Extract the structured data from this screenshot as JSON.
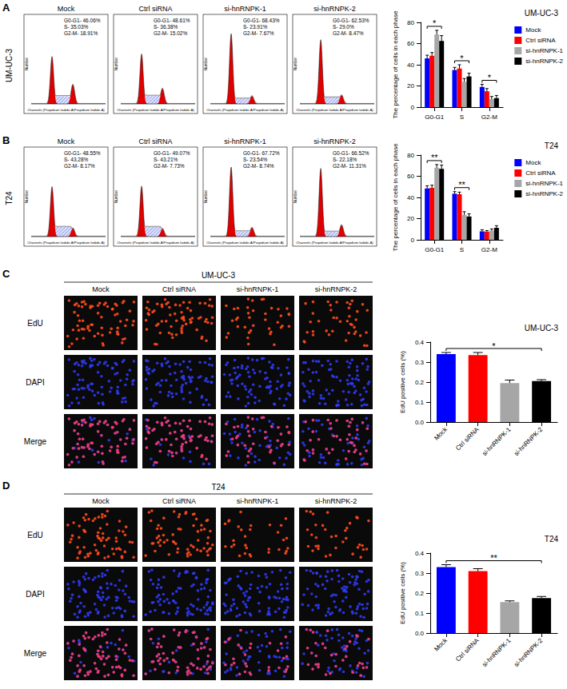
{
  "panel_labels": [
    "A",
    "B",
    "C",
    "D"
  ],
  "flow_cytometry": [
    {
      "cell_line": "UM-UC-3",
      "x_label": "Channels (Propidium Iodide-A/Propidium Iodide-A)",
      "y_label": "Number",
      "samples": [
        {
          "title": "Mock",
          "phases": [
            {
              "text": "G0-G1- 46.06%",
              "value": 46.06
            },
            {
              "text": "S- 35.03%",
              "value": 35.03
            },
            {
              "text": "G2-M- 18.91%",
              "value": 18.91
            }
          ]
        },
        {
          "title": "Ctrl siRNA",
          "phases": [
            {
              "text": "G0-G1- 48.61%",
              "value": 48.61
            },
            {
              "text": "S- 36.38%",
              "value": 36.38
            },
            {
              "text": "G2-M- 15.02%",
              "value": 15.02
            }
          ]
        },
        {
          "title": "si-hnRNPK-1",
          "phases": [
            {
              "text": "G0-G1- 68.43%",
              "value": 68.43
            },
            {
              "text": "S- 23.91%",
              "value": 23.91
            },
            {
              "text": "G2-M- 7.67%",
              "value": 7.67
            }
          ]
        },
        {
          "title": "si-hnRNPK-2",
          "phases": [
            {
              "text": "G0-G1- 62.53%",
              "value": 62.53
            },
            {
              "text": "S- 29.0%",
              "value": 29.0
            },
            {
              "text": "G2-M- 8.47%",
              "value": 8.47
            }
          ]
        }
      ]
    },
    {
      "cell_line": "T24",
      "x_label": "Channels (Propidium Iodide-A/Propidium Iodide-A)",
      "y_label": "Number",
      "samples": [
        {
          "title": "Mock",
          "phases": [
            {
              "text": "G0-G1- 48.55%",
              "value": 48.55
            },
            {
              "text": "S- 43.28%",
              "value": 43.28
            },
            {
              "text": "G2-M- 8.17%",
              "value": 8.17
            }
          ]
        },
        {
          "title": "Ctrl siRNA",
          "phases": [
            {
              "text": "G0-G1- 49.07%",
              "value": 49.07
            },
            {
              "text": "S- 43.21%",
              "value": 43.21
            },
            {
              "text": "G2-M- 7.73%",
              "value": 7.73
            }
          ]
        },
        {
          "title": "si-hnRNPK-1",
          "phases": [
            {
              "text": "G0-G1- 67.72%",
              "value": 67.72
            },
            {
              "text": "S- 23.54%",
              "value": 23.54
            },
            {
              "text": "G2-M- 8.74%",
              "value": 8.74
            }
          ]
        },
        {
          "title": "si-hnRNPK-2",
          "phases": [
            {
              "text": "G0-G1- 66.52%",
              "value": 66.52
            },
            {
              "text": "S- 22.18%",
              "value": 22.18
            },
            {
              "text": "G2-M- 11.31%",
              "value": 11.31
            }
          ]
        }
      ]
    }
  ],
  "edu_images": [
    {
      "cell_line": "UM-UC-3",
      "rows": [
        "EdU",
        "DAPI",
        "Merge"
      ],
      "columns": [
        "Mock",
        "Ctrl siRNA",
        "si-hnRNPK-1",
        "si-hnRNPK-2"
      ]
    },
    {
      "cell_line": "T24",
      "rows": [
        "EdU",
        "DAPI",
        "Merge"
      ],
      "columns": [
        "Mock",
        "Ctrl siRNA",
        "si-hnRNPK-1",
        "si-hnRNPK-2"
      ]
    }
  ],
  "chart_data": [
    {
      "type": "bar",
      "title": "UM-UC-3",
      "y_label": "The percentage of cells in each phase",
      "categories": [
        "G0-G1",
        "S",
        "G2-M"
      ],
      "series": [
        {
          "name": "Mock",
          "color": "#0000ff",
          "values": [
            46,
            35,
            19
          ],
          "errors": [
            3,
            2.5,
            2.5
          ]
        },
        {
          "name": "Ctrl siRNA",
          "color": "#ff0000",
          "values": [
            48.5,
            36.5,
            15
          ],
          "errors": [
            3,
            3.5,
            2.5
          ]
        },
        {
          "name": "si-hnRNPK-1",
          "color": "#a6a6a6",
          "values": [
            68.5,
            24,
            7.5
          ],
          "errors": [
            4,
            3,
            2.5
          ]
        },
        {
          "name": "si-hnRNPK-2",
          "color": "#000000",
          "values": [
            62.5,
            29,
            8.5
          ],
          "errors": [
            5,
            3,
            2.5
          ]
        }
      ],
      "ylim": [
        0,
        80
      ],
      "yticks": [
        0,
        20,
        40,
        60,
        80
      ],
      "grid": false,
      "legend": "right",
      "significance": [
        {
          "category": "G0-G1",
          "label": "*"
        },
        {
          "category": "S",
          "label": "*"
        },
        {
          "category": "G2-M",
          "label": "*"
        }
      ]
    },
    {
      "type": "bar",
      "title": "T24",
      "y_label": "The percentage of cells in each phase",
      "categories": [
        "G0-G1",
        "S",
        "G2-M"
      ],
      "series": [
        {
          "name": "Mock",
          "color": "#0000ff",
          "values": [
            48.5,
            43.5,
            8
          ],
          "errors": [
            2.5,
            2,
            1.5
          ]
        },
        {
          "name": "Ctrl siRNA",
          "color": "#ff0000",
          "values": [
            49,
            43,
            7.7
          ],
          "errors": [
            2.5,
            2,
            1
          ]
        },
        {
          "name": "si-hnRNPK-1",
          "color": "#a6a6a6",
          "values": [
            68,
            23.5,
            8.7
          ],
          "errors": [
            3,
            3,
            1.5
          ]
        },
        {
          "name": "si-hnRNPK-2",
          "color": "#000000",
          "values": [
            67,
            22,
            11.3
          ],
          "errors": [
            3.5,
            2.5,
            2
          ]
        }
      ],
      "ylim": [
        0,
        80
      ],
      "yticks": [
        0,
        20,
        40,
        60,
        80
      ],
      "grid": false,
      "legend": "right",
      "significance": [
        {
          "category": "G0-G1",
          "label": "**"
        },
        {
          "category": "S",
          "label": "**"
        }
      ]
    },
    {
      "type": "bar",
      "title": "UM-UC-3",
      "y_label": "EdU positive cells (%)",
      "categories": [
        "Mock",
        "Ctrl siRNA",
        "si-hnRNPK-1",
        "si-hnRNPK-2"
      ],
      "values": [
        0.34,
        0.335,
        0.195,
        0.205
      ],
      "errors": [
        0.008,
        0.013,
        0.015,
        0.007
      ],
      "colors": [
        "#0000ff",
        "#ff0000",
        "#a6a6a6",
        "#000000"
      ],
      "ylim": [
        0,
        0.4
      ],
      "yticks": [
        {
          "value": 0,
          "label": "0.0"
        },
        0.1,
        0.2,
        0.3,
        0.4
      ],
      "grid": false,
      "significance": [
        {
          "from": "Mock",
          "to": "si-hnRNPK-2",
          "label": "*"
        }
      ]
    },
    {
      "type": "bar",
      "title": "T24",
      "y_label": "EdU positive cells (%)",
      "categories": [
        "Mock",
        "Ctrl siRNA",
        "si-hnRNPK-1",
        "si-hnRNPK-2"
      ],
      "values": [
        0.33,
        0.31,
        0.155,
        0.175
      ],
      "errors": [
        0.012,
        0.012,
        0.006,
        0.008
      ],
      "colors": [
        "#0000ff",
        "#ff0000",
        "#a6a6a6",
        "#000000"
      ],
      "ylim": [
        0,
        0.4
      ],
      "yticks": [
        {
          "value": 0,
          "label": "0.0"
        },
        0.1,
        0.2,
        0.3,
        0.4
      ],
      "grid": false,
      "significance": [
        {
          "from": "Mock",
          "to": "si-hnRNPK-2",
          "label": "**"
        }
      ]
    }
  ]
}
